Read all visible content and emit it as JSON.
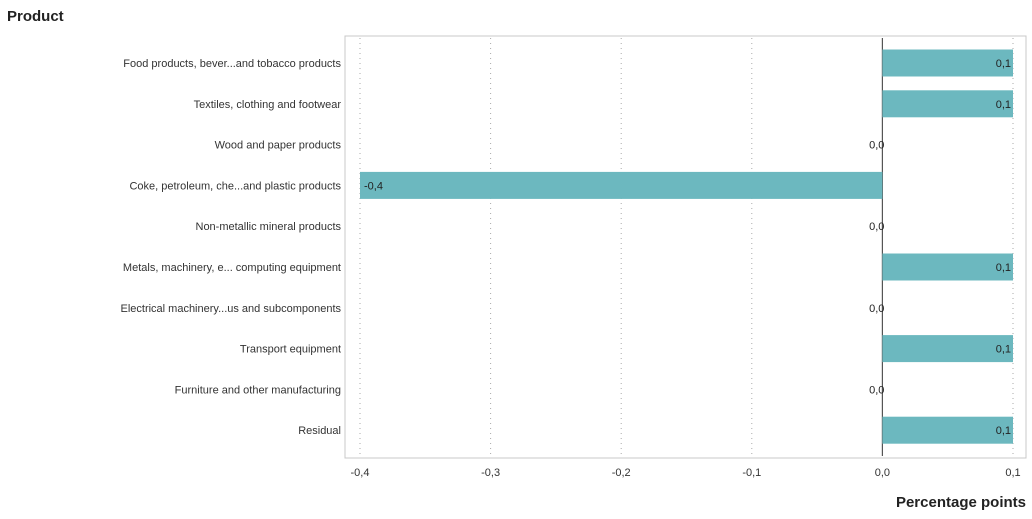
{
  "chart_data": {
    "type": "bar",
    "orientation": "horizontal",
    "ylabel": "Product",
    "xlabel": "Percentage points",
    "categories": [
      "Food products, bever...and tobacco products",
      "Textiles, clothing and footwear",
      "Wood and paper products",
      "Coke, petroleum, che...and plastic products",
      "Non-metallic mineral products",
      "Metals, machinery, e... computing equipment",
      "Electrical machinery...us and subcomponents",
      "Transport equipment",
      "Furniture and other manufacturing",
      "Residual"
    ],
    "values": [
      0.1,
      0.1,
      0.0,
      -0.4,
      0.0,
      0.1,
      0.0,
      0.1,
      0.0,
      0.1
    ],
    "value_labels": [
      "0,1",
      "0,1",
      "0,0",
      "-0,4",
      "0,0",
      "0,1",
      "0,0",
      "0,1",
      "0,0",
      "0,1"
    ],
    "xlim": [
      -0.4,
      0.1
    ],
    "xticks": [
      -0.4,
      -0.3,
      -0.2,
      -0.1,
      0.0,
      0.1
    ],
    "xtick_labels": [
      "-0,4",
      "-0,3",
      "-0,2",
      "-0,1",
      "0,0",
      "0,1"
    ],
    "grid": "vertical dotted",
    "bar_color": "#6cb8bf"
  }
}
